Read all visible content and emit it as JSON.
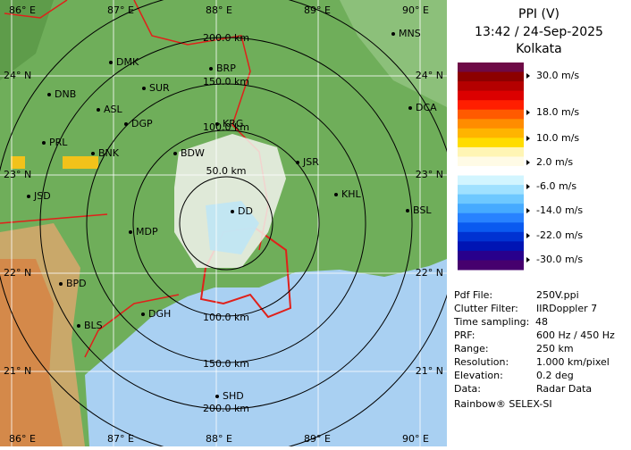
{
  "map": {
    "lon_labels_top": [
      "86° E",
      "87° E",
      "88° E",
      "89° E",
      "90° E"
    ],
    "lon_labels_bottom": [
      "86° E",
      "87° E",
      "88° E",
      "89° E",
      "90° E"
    ],
    "lat_labels_left": [
      "24° N",
      "23° N",
      "22° N",
      "21° N"
    ],
    "lat_labels_right": [
      "24° N",
      "23° N",
      "22° N",
      "21° N"
    ],
    "range_labels_top": [
      "200.0 km",
      "150.0 km",
      "100.0 km",
      "50.0 km"
    ],
    "range_labels_bottom": [
      "100.0 km",
      "150.0 km",
      "200.0 km"
    ],
    "places": [
      "MNS",
      "DMK",
      "BRP",
      "SUR",
      "DNB",
      "ASL",
      "DGP",
      "KRG",
      "DCA",
      "PRL",
      "BNK",
      "BDW",
      "JSR",
      "KHL",
      "JSD",
      "DD",
      "BSL",
      "MDP",
      "BPD",
      "DGH",
      "BLS",
      "SHD"
    ]
  },
  "panel": {
    "title": "PPI (V)",
    "time": "13:42 / 24-Sep-2025",
    "site": "Kolkata",
    "legend": [
      "30.0 m/s",
      "18.0 m/s",
      "10.0 m/s",
      "2.0 m/s",
      "-6.0 m/s",
      "-14.0 m/s",
      "-22.0 m/s",
      "-30.0 m/s"
    ],
    "info": [
      [
        "Pdf File:",
        "250V.ppi"
      ],
      [
        "Clutter Filter:",
        "IIRDoppler 7"
      ],
      [
        "Time sampling:",
        "48"
      ],
      [
        "PRF:",
        "600 Hz / 450 Hz"
      ],
      [
        "Range:",
        "250 km"
      ],
      [
        "Resolution:",
        "1.000 km/pixel"
      ],
      [
        "Elevation:",
        "0.2 deg"
      ],
      [
        "Data:",
        "Radar Data"
      ]
    ],
    "footer": "Rainbow® SELEX-SI"
  }
}
